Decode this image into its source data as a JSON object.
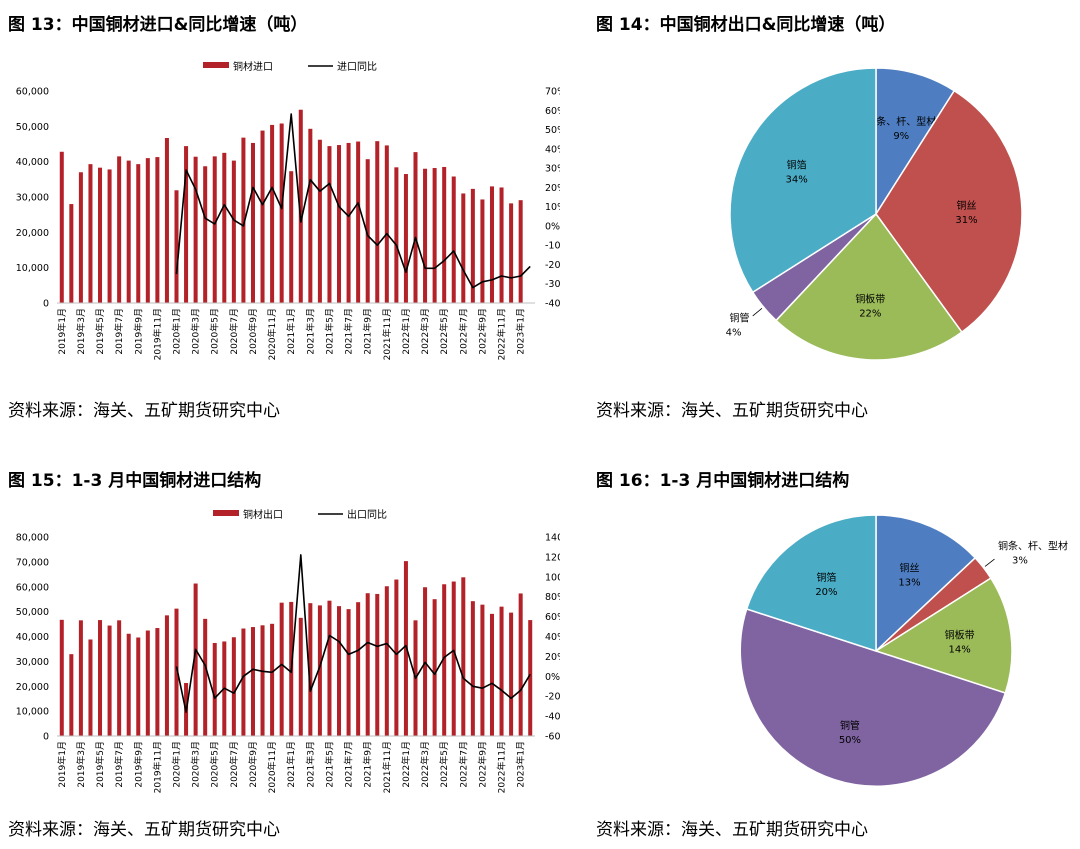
{
  "figures": [
    {
      "id": "fig13",
      "title": "图 13：中国铜材进口&同比增速（吨）",
      "source": "资料来源：海关、五矿期货研究中心"
    },
    {
      "id": "fig14",
      "title": "图 14：中国铜材出口&同比增速（吨）",
      "source": "资料来源：海关、五矿期货研究中心"
    },
    {
      "id": "fig15",
      "title": "图 15：1-3 月中国铜材进口结构",
      "source": "资料来源：海关、五矿期货研究中心"
    },
    {
      "id": "fig16",
      "title": "图 16：1-3 月中国铜材进口结构",
      "source": "资料来源：海关、五矿期货研究中心"
    }
  ],
  "colors": {
    "bar": "#B22228",
    "line": "#000000",
    "pie_blue": "#4E7EC1",
    "pie_red": "#C0504D",
    "pie_green": "#9BBB59",
    "pie_purple": "#8064A2",
    "pie_teal": "#4BACC6"
  },
  "chart_data": [
    {
      "type": "bar",
      "title": "",
      "categories": [
        "2019年1月",
        "2019年2月",
        "2019年3月",
        "2019年4月",
        "2019年5月",
        "2019年6月",
        "2019年7月",
        "2019年8月",
        "2019年9月",
        "2019年10月",
        "2019年11月",
        "2019年12月",
        "2020年1月",
        "2020年2月",
        "2020年3月",
        "2020年4月",
        "2020年5月",
        "2020年6月",
        "2020年7月",
        "2020年8月",
        "2020年9月",
        "2020年10月",
        "2020年11月",
        "2020年12月",
        "2021年1月",
        "2021年2月",
        "2021年3月",
        "2021年4月",
        "2021年5月",
        "2021年6月",
        "2021年7月",
        "2021年8月",
        "2021年9月",
        "2021年10月",
        "2021年11月",
        "2021年12月",
        "2022年1月",
        "2022年2月",
        "2022年3月",
        "2022年4月",
        "2022年5月",
        "2022年6月",
        "2022年7月",
        "2022年8月",
        "2022年9月",
        "2022年10月",
        "2022年11月",
        "2022年12月",
        "2023年1月",
        "2023年2月"
      ],
      "tick_labels": [
        "2019年1月",
        "2019年3月",
        "2019年5月",
        "2019年7月",
        "2019年9月",
        "2019年11月",
        "2020年1月",
        "2020年3月",
        "2020年5月",
        "2020年7月",
        "2020年9月",
        "2020年11月",
        "2021年1月",
        "2021年3月",
        "2021年5月",
        "2021年7月",
        "2021年9月",
        "2021年11月",
        "2022年1月",
        "2022年3月",
        "2022年5月",
        "2022年7月",
        "2022年9月",
        "2022年11月",
        "2023年1月"
      ],
      "series": [
        {
          "name": "铜材进口",
          "axis": "left",
          "values": [
            42800,
            28000,
            37000,
            39300,
            38300,
            37800,
            41500,
            40300,
            39300,
            41000,
            41300,
            46700,
            31900,
            44400,
            41400,
            38700,
            41500,
            42500,
            40300,
            46800,
            45300,
            48800,
            50400,
            50800,
            37300,
            54700,
            49300,
            46200,
            44400,
            44700,
            45300,
            45700,
            40700,
            45800,
            44600,
            38400,
            36500,
            42700,
            38000,
            38200,
            38500,
            35800,
            31000,
            32300,
            29300,
            33000,
            32700,
            28200,
            29100,
            null
          ]
        },
        {
          "name": "进口同比",
          "axis": "right",
          "type": "line",
          "values": [
            null,
            null,
            null,
            null,
            null,
            null,
            null,
            null,
            null,
            null,
            null,
            null,
            -25,
            29,
            19,
            4,
            1,
            11,
            3,
            0,
            20,
            11,
            20,
            9,
            58,
            2,
            24,
            18,
            22,
            10,
            5,
            12,
            -5,
            -10,
            -4,
            -10,
            -24,
            -6,
            -22,
            -22,
            -18,
            -13,
            -23,
            -32,
            -29,
            -28,
            -26,
            -27,
            -26,
            -21
          ]
        }
      ],
      "ylim": [
        0,
        60000
      ],
      "y_ticks": [
        "60,000",
        "50,000",
        "40,000",
        "30,000",
        "20,000",
        "10,000",
        "0"
      ],
      "y2lim": [
        -40,
        70
      ],
      "y2_ticks": [
        "70%",
        "60%",
        "50%",
        "40%",
        "30%",
        "20%",
        "10%",
        "0%",
        "-10%",
        "-20%",
        "-30%",
        "-40%"
      ],
      "legend_position": "top"
    },
    {
      "type": "pie",
      "title": "",
      "slices": [
        {
          "label": "铜条、杆、型材",
          "pct": "9%",
          "value": 9,
          "color": "#4E7EC1"
        },
        {
          "label": "铜丝",
          "pct": "31%",
          "value": 31,
          "color": "#C0504D"
        },
        {
          "label": "铜板带",
          "pct": "22%",
          "value": 22,
          "color": "#9BBB59"
        },
        {
          "label": "铜管",
          "pct": "4%",
          "value": 4,
          "color": "#8064A2"
        },
        {
          "label": "铜箔",
          "pct": "34%",
          "value": 34,
          "color": "#4BACC6"
        }
      ]
    },
    {
      "type": "bar",
      "title": "",
      "categories": [
        "2019年1月",
        "2019年2月",
        "2019年3月",
        "2019年4月",
        "2019年5月",
        "2019年6月",
        "2019年7月",
        "2019年8月",
        "2019年9月",
        "2019年10月",
        "2019年11月",
        "2019年12月",
        "2020年1月",
        "2020年2月",
        "2020年3月",
        "2020年4月",
        "2020年5月",
        "2020年6月",
        "2020年7月",
        "2020年8月",
        "2020年9月",
        "2020年10月",
        "2020年11月",
        "2020年12月",
        "2021年1月",
        "2021年2月",
        "2021年3月",
        "2021年4月",
        "2021年5月",
        "2021年6月",
        "2021年7月",
        "2021年8月",
        "2021年9月",
        "2021年10月",
        "2021年11月",
        "2021年12月",
        "2022年1月",
        "2022年2月",
        "2022年3月",
        "2022年4月",
        "2022年5月",
        "2022年6月",
        "2022年7月",
        "2022年8月",
        "2022年9月",
        "2022年10月",
        "2022年11月",
        "2022年12月",
        "2023年1月",
        "2023年2月"
      ],
      "tick_labels": [
        "2019年1月",
        "2019年3月",
        "2019年5月",
        "2019年7月",
        "2019年9月",
        "2019年11月",
        "2020年1月",
        "2020年3月",
        "2020年5月",
        "2020年7月",
        "2020年9月",
        "2020年11月",
        "2021年1月",
        "2021年3月",
        "2021年5月",
        "2021年7月",
        "2021年9月",
        "2021年11月",
        "2022年1月",
        "2022年3月",
        "2022年5月",
        "2022年7月",
        "2022年9月",
        "2022年11月",
        "2023年1月"
      ],
      "series": [
        {
          "name": "铜材出口",
          "axis": "left",
          "values": [
            46700,
            32900,
            46500,
            38800,
            46600,
            44400,
            46500,
            41100,
            39600,
            42400,
            43400,
            48500,
            51200,
            21300,
            61300,
            47100,
            37400,
            38000,
            39700,
            43200,
            43800,
            44500,
            45100,
            53600,
            53900,
            47500,
            53400,
            52500,
            54400,
            52200,
            51000,
            53800,
            57400,
            57100,
            60200,
            62900,
            70300,
            46500,
            59800,
            55000,
            61000,
            62100,
            63800,
            54200,
            52800,
            49100,
            52000,
            49600,
            57300,
            46600
          ]
        },
        {
          "name": "出口同比",
          "axis": "right",
          "type": "line",
          "values": [
            null,
            null,
            null,
            null,
            null,
            null,
            null,
            null,
            null,
            null,
            null,
            null,
            10,
            -36,
            27,
            11,
            -22,
            -12,
            -17,
            0,
            7,
            5,
            4,
            12,
            4,
            122,
            -15,
            10,
            41,
            35,
            22,
            26,
            34,
            30,
            33,
            22,
            31,
            -2,
            14,
            2,
            19,
            26,
            -2,
            -10,
            -12,
            -7,
            -14,
            -22,
            -14,
            2
          ]
        }
      ],
      "ylim": [
        0,
        80000
      ],
      "y_ticks": [
        "80,000",
        "70,000",
        "60,000",
        "50,000",
        "40,000",
        "30,000",
        "20,000",
        "10,000",
        "0"
      ],
      "y2lim": [
        -60,
        140
      ],
      "y2_ticks": [
        "140%",
        "120%",
        "100%",
        "80%",
        "60%",
        "40%",
        "20%",
        "0%",
        "-20%",
        "-40%",
        "-60%"
      ],
      "legend_position": "top"
    },
    {
      "type": "pie",
      "title": "",
      "slices": [
        {
          "label": "铜丝",
          "pct": "13%",
          "value": 13,
          "color": "#4E7EC1"
        },
        {
          "label": "铜条、杆、型材",
          "pct": "3%",
          "value": 3,
          "color": "#C0504D"
        },
        {
          "label": "铜板带",
          "pct": "14%",
          "value": 14,
          "color": "#9BBB59"
        },
        {
          "label": "铜管",
          "pct": "50%",
          "value": 50,
          "color": "#8064A2"
        },
        {
          "label": "铜箔",
          "pct": "20%",
          "value": 20,
          "color": "#4BACC6"
        }
      ]
    }
  ]
}
